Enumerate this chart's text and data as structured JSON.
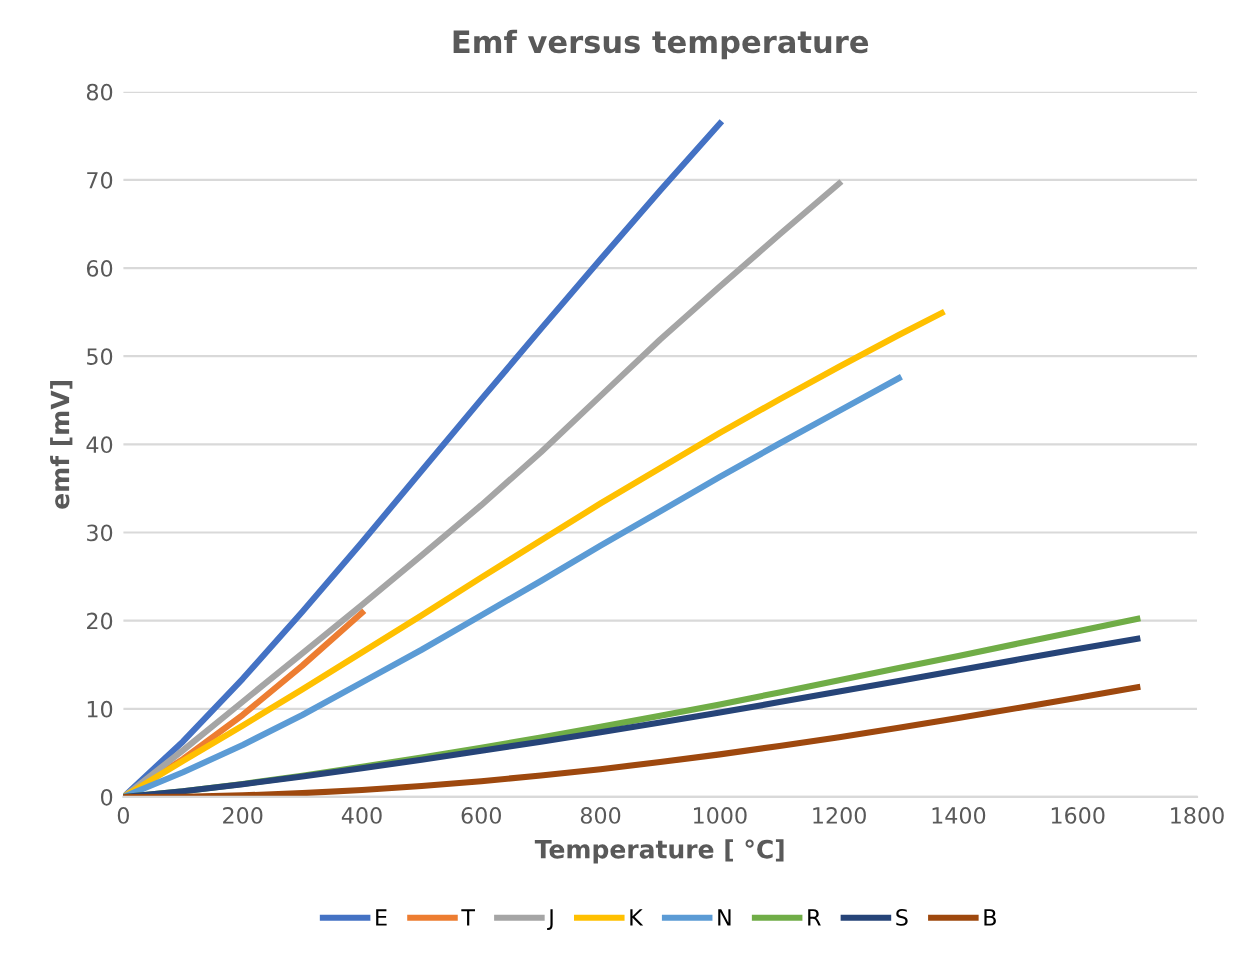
{
  "chart_data": {
    "type": "line",
    "title": "Emf versus temperature",
    "xlabel": "Temperature [ °C]",
    "ylabel": "emf [mV]",
    "xlim": [
      0,
      1800
    ],
    "xticks": [
      0,
      200,
      400,
      600,
      800,
      1000,
      1200,
      1400,
      1600,
      1800
    ],
    "ylim": [
      0,
      80
    ],
    "yticks": [
      0,
      10,
      20,
      30,
      40,
      50,
      60,
      70,
      80
    ],
    "grid": "y",
    "legend": "bottom",
    "marker": "none",
    "line_style": "solid",
    "series": [
      {
        "name": "E",
        "color": "#4472c4",
        "x": [
          0,
          100,
          200,
          300,
          400,
          500,
          600,
          700,
          800,
          900,
          1000
        ],
        "values": [
          0,
          6.3,
          13.4,
          21.0,
          28.9,
          37.0,
          45.1,
          53.1,
          61.0,
          68.8,
          76.4
        ]
      },
      {
        "name": "T",
        "color": "#ed7d31",
        "x": [
          0,
          100,
          200,
          300,
          400
        ],
        "values": [
          0,
          4.3,
          9.3,
          14.9,
          20.9
        ]
      },
      {
        "name": "J",
        "color": "#a5a5a5",
        "x": [
          0,
          100,
          200,
          300,
          400,
          500,
          600,
          700,
          800,
          900,
          1000,
          1100,
          1200
        ],
        "values": [
          0,
          5.3,
          10.8,
          16.3,
          21.8,
          27.4,
          33.1,
          39.1,
          45.5,
          51.9,
          57.9,
          63.8,
          69.6
        ]
      },
      {
        "name": "K",
        "color": "#ffc000",
        "x": [
          0,
          100,
          200,
          300,
          400,
          500,
          600,
          700,
          800,
          900,
          1000,
          1100,
          1200,
          1300,
          1372
        ],
        "values": [
          0,
          4.1,
          8.1,
          12.2,
          16.4,
          20.6,
          24.9,
          29.1,
          33.3,
          37.3,
          41.3,
          45.1,
          48.8,
          52.4,
          54.9
        ]
      },
      {
        "name": "N",
        "color": "#5b9bd5",
        "x": [
          0,
          100,
          200,
          300,
          400,
          500,
          600,
          700,
          800,
          900,
          1000,
          1100,
          1200,
          1300
        ],
        "values": [
          0,
          2.8,
          5.9,
          9.3,
          13.0,
          16.7,
          20.6,
          24.5,
          28.5,
          32.4,
          36.3,
          40.1,
          43.8,
          47.5
        ]
      },
      {
        "name": "R",
        "color": "#70ad47",
        "x": [
          0,
          100,
          200,
          300,
          400,
          500,
          600,
          700,
          800,
          900,
          1000,
          1100,
          1200,
          1300,
          1400,
          1500,
          1600,
          1700
        ],
        "values": [
          0,
          0.65,
          1.47,
          2.4,
          3.41,
          4.47,
          5.58,
          6.74,
          7.95,
          9.21,
          10.5,
          11.85,
          13.23,
          14.62,
          16.0,
          17.4,
          18.8,
          20.2
        ]
      },
      {
        "name": "S",
        "color": "#264478",
        "x": [
          0,
          100,
          200,
          300,
          400,
          500,
          600,
          700,
          800,
          900,
          1000,
          1100,
          1200,
          1300,
          1400,
          1500,
          1600,
          1700
        ],
        "values": [
          0,
          0.65,
          1.44,
          2.32,
          3.26,
          4.23,
          5.24,
          6.27,
          7.35,
          8.45,
          9.59,
          10.76,
          11.95,
          13.16,
          14.37,
          15.58,
          16.78,
          17.95
        ]
      },
      {
        "name": "B",
        "color": "#9e480e",
        "x": [
          0,
          100,
          200,
          300,
          400,
          500,
          600,
          700,
          800,
          900,
          1000,
          1100,
          1200,
          1300,
          1400,
          1500,
          1600,
          1700
        ],
        "values": [
          0,
          0.03,
          0.18,
          0.43,
          0.79,
          1.24,
          1.79,
          2.43,
          3.15,
          3.96,
          4.83,
          5.78,
          6.78,
          7.85,
          8.96,
          10.1,
          11.26,
          12.43
        ]
      }
    ]
  }
}
